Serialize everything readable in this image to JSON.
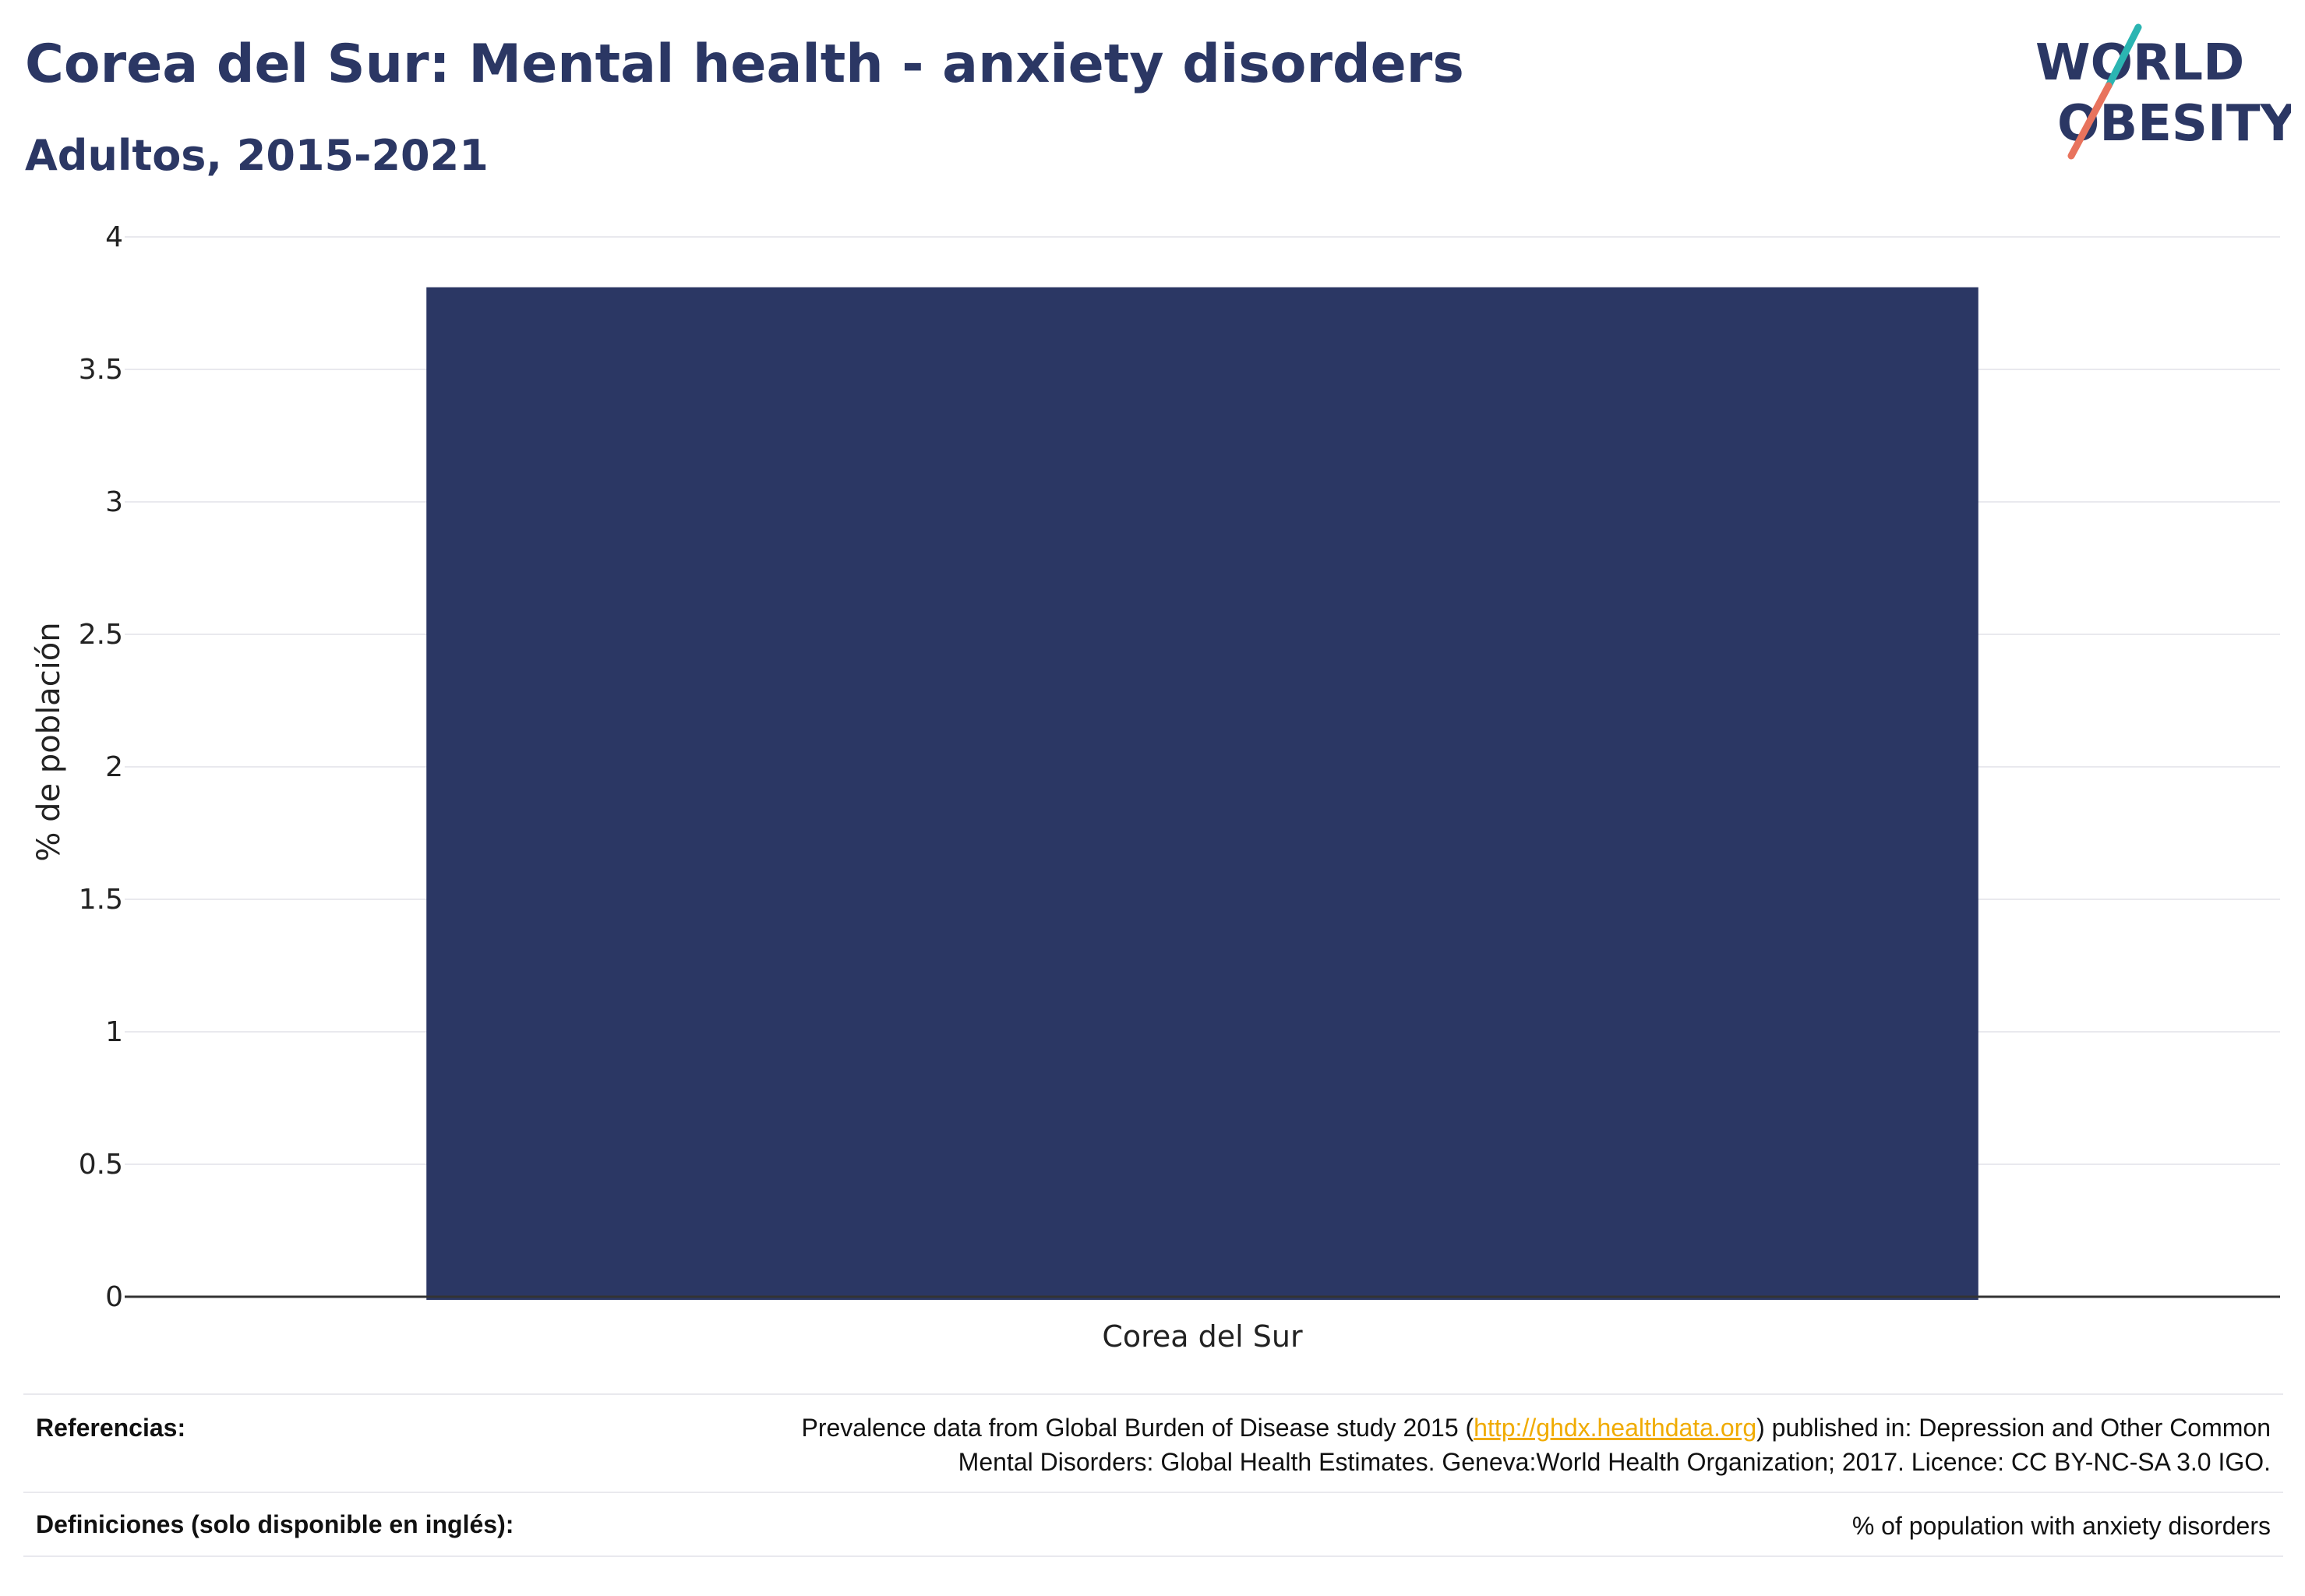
{
  "header": {
    "title": "Corea del Sur: Mental health - anxiety disorders",
    "subtitle": "Adultos, 2015-2021"
  },
  "logo": {
    "line1": "WORLD",
    "line2": "OBESITY",
    "text_color": "#2b3764",
    "accent_teal": "#2bb5b2",
    "accent_coral": "#e8735d"
  },
  "chart_data": {
    "type": "bar",
    "categories": [
      "Corea del Sur"
    ],
    "values": [
      3.81
    ],
    "title": "Corea del Sur: Mental health - anxiety disorders",
    "subtitle": "Adultos, 2015-2021",
    "xlabel": "",
    "ylabel": "% de población",
    "ylim": [
      0,
      4
    ],
    "yticks": [
      0,
      0.5,
      1,
      1.5,
      2,
      2.5,
      3,
      3.5,
      4
    ],
    "ytick_labels": [
      "0",
      "0.5",
      "1",
      "1.5",
      "2",
      "2.5",
      "3",
      "3.5",
      "4"
    ],
    "grid": true,
    "legend": "none",
    "bar_color": "#2b3764",
    "grid_color": "#e9e9ee",
    "axis_color": "#333333"
  },
  "footer": {
    "references_label": "Referencias:",
    "references_line1_before": "Prevalence data from Global Burden of Disease study 2015 (",
    "references_link": "http://ghdx.healthdata.org",
    "references_line1_after": ") published in: Depression and Other Common",
    "references_line2": "Mental Disorders: Global Health Estimates. Geneva:World Health Organization; 2017. Licence: CC BY-NC-SA 3.0 IGO.",
    "definitions_label": "Definiciones (solo disponible en inglés):",
    "definitions_text": "% of population with anxiety disorders",
    "link_color": "#f0ab00"
  }
}
